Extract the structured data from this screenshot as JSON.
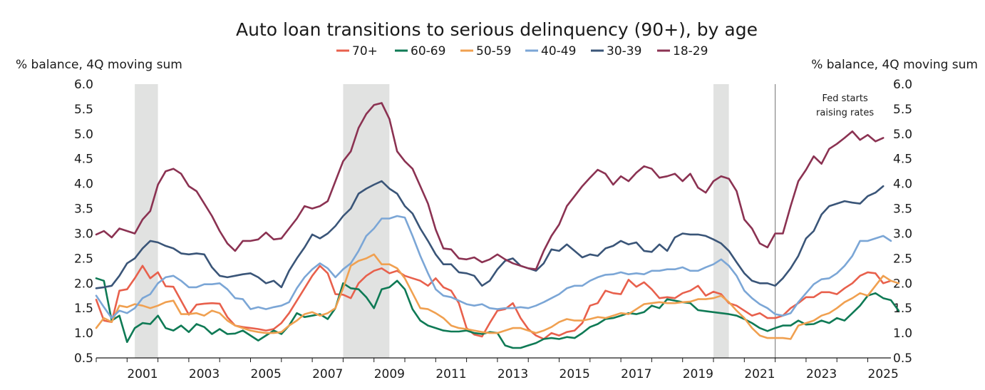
{
  "chart_data": {
    "type": "line",
    "title": "Auto loan transitions to serious delinquency (90+), by age",
    "ylabel_left": "% balance, 4Q moving sum",
    "ylabel_right": "% balance, 4Q moving sum",
    "ylim": [
      0.5,
      6.0
    ],
    "yticks": [
      "0.5",
      "1.0",
      "1.5",
      "2.0",
      "2.5",
      "3.0",
      "3.5",
      "4.0",
      "4.5",
      "5.0",
      "5.5",
      "6.0"
    ],
    "xlim": [
      2000.0,
      2025.75
    ],
    "xticks": [
      "2001",
      "2003",
      "2005",
      "2007",
      "2009",
      "2011",
      "2013",
      "2015",
      "2017",
      "2019",
      "2021",
      "2023",
      "2025"
    ],
    "grid": false,
    "legend": "top-center",
    "recessions": [
      [
        2001.25,
        2002.0
      ],
      [
        2008.0,
        2009.5
      ],
      [
        2020.0,
        2020.5
      ]
    ],
    "annotation": {
      "x": 2022.0,
      "lines": [
        "Fed starts",
        "raising rates"
      ]
    },
    "series": [
      {
        "name": "70+",
        "color": "#e8604c",
        "values": [
          1.67,
          1.25,
          1.22,
          1.85,
          1.88,
          2.1,
          2.35,
          2.1,
          2.22,
          1.94,
          1.93,
          1.65,
          1.37,
          1.57,
          1.59,
          1.6,
          1.59,
          1.32,
          1.15,
          1.12,
          1.1,
          1.08,
          1.05,
          1.08,
          1.2,
          1.4,
          1.65,
          1.9,
          2.15,
          2.35,
          2.2,
          1.78,
          1.77,
          1.7,
          2.0,
          2.15,
          2.25,
          2.3,
          2.2,
          2.25,
          2.15,
          2.1,
          2.05,
          1.95,
          2.1,
          1.92,
          1.85,
          1.6,
          1.1,
          0.97,
          0.93,
          1.2,
          1.45,
          1.48,
          1.6,
          1.3,
          1.08,
          0.95,
          0.88,
          1.0,
          0.95,
          1.02,
          1.05,
          1.2,
          1.55,
          1.6,
          1.85,
          1.8,
          1.78,
          2.07,
          1.93,
          2.02,
          1.88,
          1.7,
          1.72,
          1.7,
          1.8,
          1.85,
          1.95,
          1.75,
          1.83,
          1.78,
          1.6,
          1.55,
          1.45,
          1.35,
          1.4,
          1.3,
          1.3,
          1.35,
          1.5,
          1.6,
          1.72,
          1.72,
          1.82,
          1.82,
          1.78,
          1.9,
          2.0,
          2.15,
          2.22,
          2.2,
          2.0,
          2.05
        ]
      },
      {
        "name": "60-69",
        "color": "#0f7a55",
        "values": [
          2.1,
          2.05,
          1.25,
          1.35,
          0.82,
          1.1,
          1.2,
          1.18,
          1.35,
          1.1,
          1.05,
          1.15,
          1.02,
          1.18,
          1.12,
          0.98,
          1.08,
          0.98,
          0.99,
          1.05,
          0.95,
          0.85,
          0.95,
          1.05,
          0.98,
          1.15,
          1.4,
          1.32,
          1.35,
          1.38,
          1.28,
          1.5,
          2.0,
          1.9,
          1.88,
          1.72,
          1.5,
          1.88,
          1.92,
          2.05,
          1.88,
          1.48,
          1.25,
          1.15,
          1.1,
          1.05,
          1.03,
          1.03,
          1.05,
          1.0,
          0.98,
          1.02,
          1.0,
          0.75,
          0.7,
          0.7,
          0.75,
          0.8,
          0.88,
          0.9,
          0.88,
          0.92,
          0.9,
          1.0,
          1.12,
          1.18,
          1.28,
          1.3,
          1.35,
          1.4,
          1.38,
          1.42,
          1.55,
          1.5,
          1.68,
          1.65,
          1.62,
          1.6,
          1.46,
          1.44,
          1.42,
          1.4,
          1.38,
          1.35,
          1.28,
          1.2,
          1.1,
          1.04,
          1.1,
          1.15,
          1.15,
          1.25,
          1.17,
          1.18,
          1.25,
          1.2,
          1.3,
          1.25,
          1.4,
          1.55,
          1.75,
          1.8,
          1.7,
          1.66,
          1.45
        ]
      },
      {
        "name": "50-59",
        "color": "#f0a050",
        "values": [
          1.1,
          1.3,
          1.22,
          1.55,
          1.52,
          1.58,
          1.55,
          1.5,
          1.55,
          1.62,
          1.65,
          1.38,
          1.38,
          1.4,
          1.35,
          1.45,
          1.4,
          1.25,
          1.15,
          1.1,
          1.05,
          1.02,
          1.0,
          1.0,
          1.02,
          1.15,
          1.25,
          1.38,
          1.42,
          1.35,
          1.4,
          1.5,
          1.9,
          2.35,
          2.45,
          2.5,
          2.58,
          2.38,
          2.38,
          2.3,
          2.1,
          1.8,
          1.5,
          1.48,
          1.4,
          1.3,
          1.15,
          1.1,
          1.08,
          1.05,
          1.02,
          1.0,
          1.0,
          1.05,
          1.1,
          1.1,
          1.05,
          1.0,
          1.05,
          1.12,
          1.22,
          1.28,
          1.25,
          1.25,
          1.28,
          1.32,
          1.3,
          1.35,
          1.4,
          1.38,
          1.48,
          1.58,
          1.6,
          1.62,
          1.6,
          1.6,
          1.62,
          1.63,
          1.68,
          1.68,
          1.7,
          1.75,
          1.62,
          1.45,
          1.3,
          1.1,
          0.95,
          0.9,
          0.9,
          0.9,
          0.88,
          1.15,
          1.2,
          1.25,
          1.35,
          1.4,
          1.5,
          1.62,
          1.7,
          1.8,
          1.75,
          1.95,
          2.15,
          2.05,
          2.0
        ]
      },
      {
        "name": "40-49",
        "color": "#7ba6d6",
        "values": [
          1.75,
          1.52,
          1.3,
          1.45,
          1.4,
          1.5,
          1.7,
          1.78,
          2.0,
          2.12,
          2.15,
          2.05,
          1.92,
          1.92,
          1.98,
          1.98,
          2.0,
          1.88,
          1.7,
          1.68,
          1.48,
          1.52,
          1.48,
          1.52,
          1.55,
          1.62,
          1.9,
          2.12,
          2.28,
          2.4,
          2.3,
          2.12,
          2.28,
          2.4,
          2.65,
          2.95,
          3.1,
          3.3,
          3.3,
          3.35,
          3.32,
          2.95,
          2.55,
          2.2,
          1.88,
          1.75,
          1.72,
          1.65,
          1.58,
          1.55,
          1.58,
          1.5,
          1.48,
          1.5,
          1.5,
          1.52,
          1.5,
          1.55,
          1.62,
          1.7,
          1.78,
          1.9,
          1.95,
          1.95,
          2.05,
          2.12,
          2.17,
          2.18,
          2.22,
          2.18,
          2.2,
          2.18,
          2.25,
          2.25,
          2.28,
          2.28,
          2.32,
          2.25,
          2.25,
          2.32,
          2.38,
          2.48,
          2.35,
          2.15,
          1.85,
          1.7,
          1.58,
          1.5,
          1.38,
          1.35,
          1.4,
          1.62,
          1.8,
          1.98,
          2.08,
          2.1,
          2.2,
          2.35,
          2.55,
          2.85,
          2.85,
          2.9,
          2.95,
          2.85
        ]
      },
      {
        "name": "30-39",
        "color": "#3a5578",
        "values": [
          1.9,
          1.92,
          1.95,
          2.15,
          2.4,
          2.5,
          2.7,
          2.85,
          2.82,
          2.75,
          2.7,
          2.6,
          2.58,
          2.6,
          2.58,
          2.32,
          2.15,
          2.12,
          2.15,
          2.18,
          2.2,
          2.12,
          2.0,
          2.05,
          1.92,
          2.25,
          2.5,
          2.72,
          2.98,
          2.9,
          3.0,
          3.15,
          3.35,
          3.5,
          3.8,
          3.9,
          3.98,
          4.05,
          3.9,
          3.8,
          3.55,
          3.4,
          3.1,
          2.85,
          2.58,
          2.38,
          2.38,
          2.22,
          2.2,
          2.15,
          1.95,
          2.05,
          2.28,
          2.45,
          2.5,
          2.35,
          2.3,
          2.25,
          2.4,
          2.68,
          2.65,
          2.78,
          2.65,
          2.52,
          2.58,
          2.55,
          2.7,
          2.75,
          2.85,
          2.78,
          2.82,
          2.65,
          2.63,
          2.78,
          2.65,
          2.92,
          3.0,
          2.98,
          2.98,
          2.95,
          2.88,
          2.8,
          2.65,
          2.42,
          2.2,
          2.05,
          2.0,
          2.0,
          1.95,
          2.1,
          2.3,
          2.55,
          2.9,
          3.05,
          3.38,
          3.55,
          3.6,
          3.65,
          3.62,
          3.6,
          3.75,
          3.82,
          3.95
        ]
      },
      {
        "name": "18-29",
        "color": "#8b3252",
        "values": [
          2.98,
          3.05,
          2.92,
          3.1,
          3.05,
          3.0,
          3.28,
          3.45,
          3.98,
          4.25,
          4.3,
          4.2,
          3.95,
          3.85,
          3.6,
          3.35,
          3.05,
          2.8,
          2.65,
          2.85,
          2.85,
          2.88,
          3.02,
          2.88,
          2.9,
          3.1,
          3.3,
          3.55,
          3.5,
          3.55,
          3.65,
          4.05,
          4.45,
          4.65,
          5.12,
          5.4,
          5.58,
          5.62,
          5.3,
          4.65,
          4.45,
          4.3,
          3.95,
          3.6,
          3.08,
          2.7,
          2.68,
          2.5,
          2.48,
          2.52,
          2.42,
          2.48,
          2.58,
          2.48,
          2.4,
          2.35,
          2.3,
          2.28,
          2.65,
          2.95,
          3.18,
          3.55,
          3.75,
          3.95,
          4.12,
          4.28,
          4.2,
          3.98,
          4.15,
          4.05,
          4.22,
          4.35,
          4.3,
          4.12,
          4.15,
          4.2,
          4.05,
          4.2,
          3.92,
          3.82,
          4.05,
          4.15,
          4.1,
          3.85,
          3.28,
          3.1,
          2.8,
          2.72,
          3.0,
          3.0,
          3.55,
          4.05,
          4.28,
          4.55,
          4.4,
          4.7,
          4.8,
          4.92,
          5.05,
          4.88,
          4.98,
          4.85,
          4.92
        ]
      }
    ]
  }
}
